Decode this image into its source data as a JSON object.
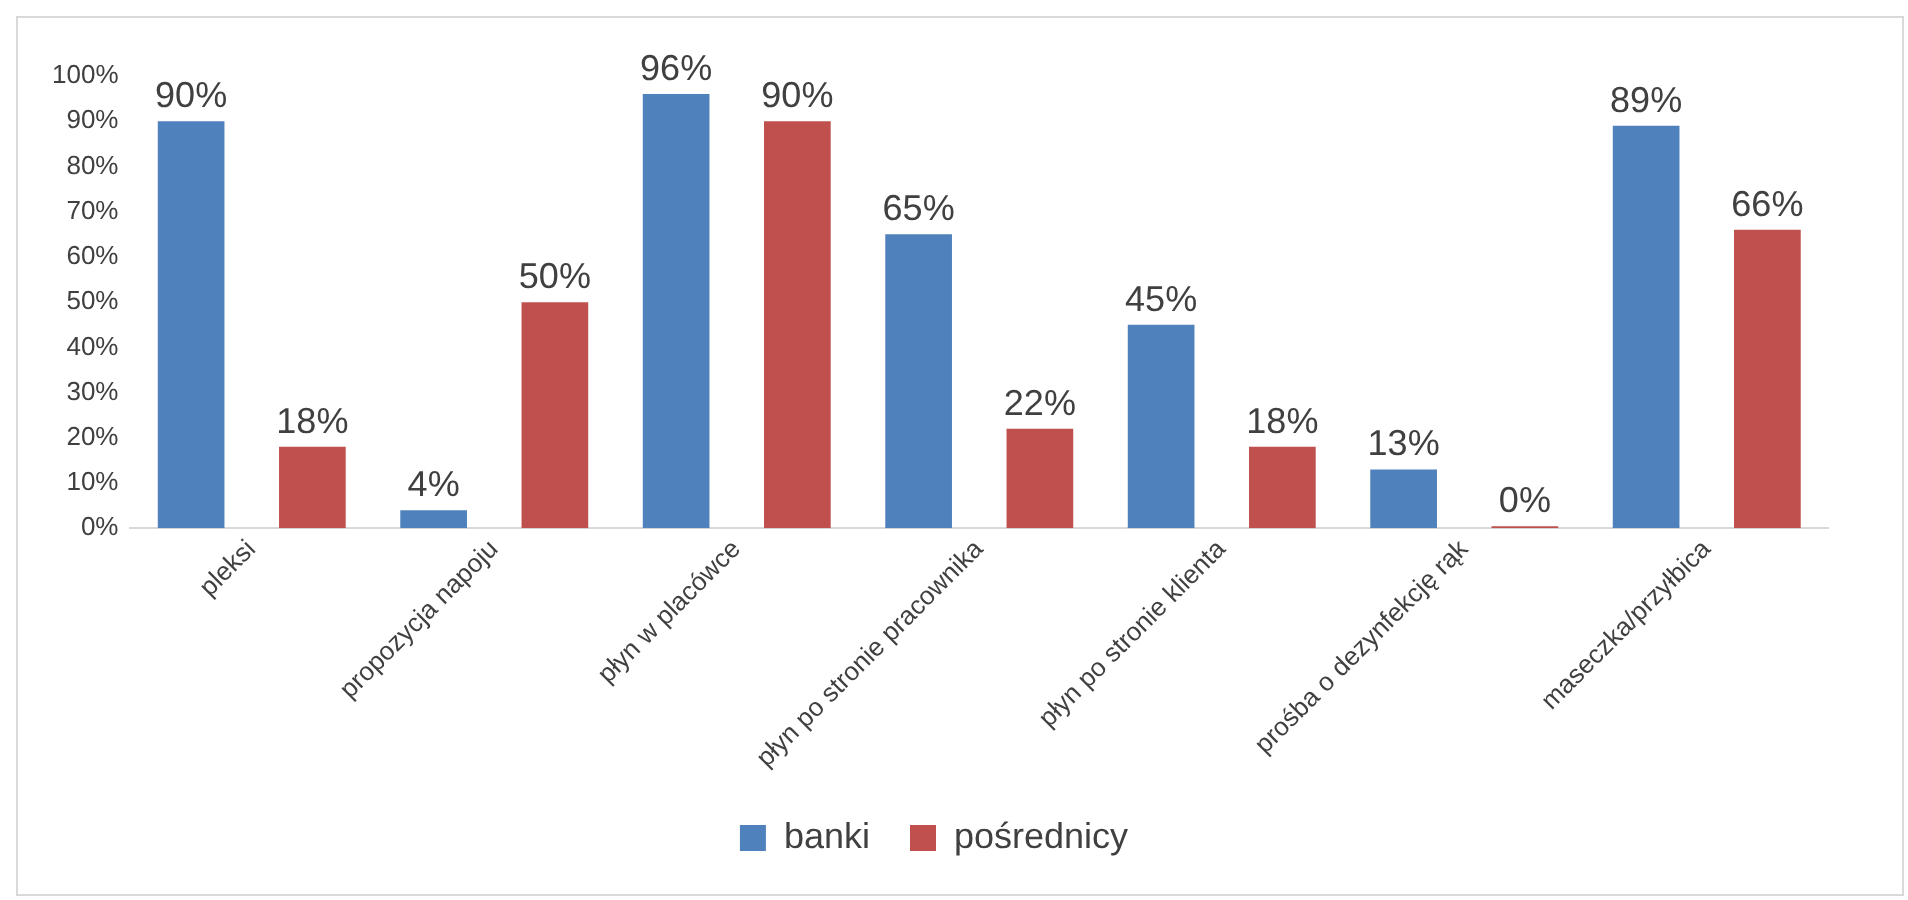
{
  "chart_data": {
    "type": "bar",
    "categories": [
      "pleksi",
      "propozycja napoju",
      "płyn w placówce",
      "płyn po stronie pracownika",
      "płyn po stronie klienta",
      "prośba o dezynfekcję rąk",
      "maseczka/przyłbica"
    ],
    "series": [
      {
        "name": "banki",
        "color": "#4f81bd",
        "values": [
          90,
          4,
          96,
          65,
          45,
          13,
          89
        ],
        "value_labels": [
          "90%",
          "4%",
          "96%",
          "65%",
          "45%",
          "13%",
          "89%"
        ]
      },
      {
        "name": "pośrednicy",
        "color": "#c0504d",
        "values": [
          18,
          50,
          90,
          22,
          18,
          0,
          66
        ],
        "value_labels": [
          "18%",
          "50%",
          "90%",
          "22%",
          "18%",
          "0%",
          "66%"
        ]
      }
    ],
    "ylim": [
      0,
      100
    ],
    "yticks": [
      {
        "value": 0,
        "label": "0%"
      },
      {
        "value": 10,
        "label": "10%"
      },
      {
        "value": 20,
        "label": "20%"
      },
      {
        "value": 30,
        "label": "30%"
      },
      {
        "value": 40,
        "label": "40%"
      },
      {
        "value": 50,
        "label": "50%"
      },
      {
        "value": 60,
        "label": "60%"
      },
      {
        "value": 70,
        "label": "70%"
      },
      {
        "value": 80,
        "label": "80%"
      },
      {
        "value": 90,
        "label": "90%"
      },
      {
        "value": 100,
        "label": "100%"
      }
    ],
    "grid": false,
    "legend": "bottom"
  }
}
